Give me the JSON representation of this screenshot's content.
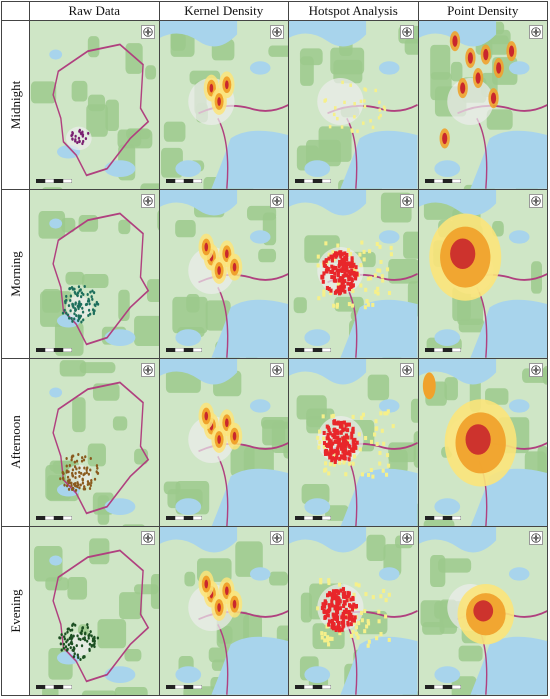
{
  "columns": [
    "Raw Data",
    "Kernel Density",
    "Hotspot Analysis",
    "Point Density"
  ],
  "rows": [
    "Midnight",
    "Morning",
    "Afternoon",
    "Evening"
  ],
  "colors": {
    "land": "#cfe6c6",
    "forest": "#9cc98c",
    "water": "#a8d4ec",
    "urban": "#ececec",
    "boundary": "#b0407f",
    "kernel_high": "#c9272d",
    "kernel_mid": "#f0a22c",
    "kernel_low": "#fbe47a",
    "hotspot_hot": "#e8262a",
    "hotspot_warm": "#f6f08a",
    "raw_midnight": "#7a1f70",
    "raw_morning": "#1e6f5c",
    "raw_afternoon": "#8a5a1e",
    "raw_evening": "#1c4f22"
  },
  "icons": {
    "north_arrow": "compass-rose-icon",
    "scale_bar": "scale-bar-icon"
  }
}
